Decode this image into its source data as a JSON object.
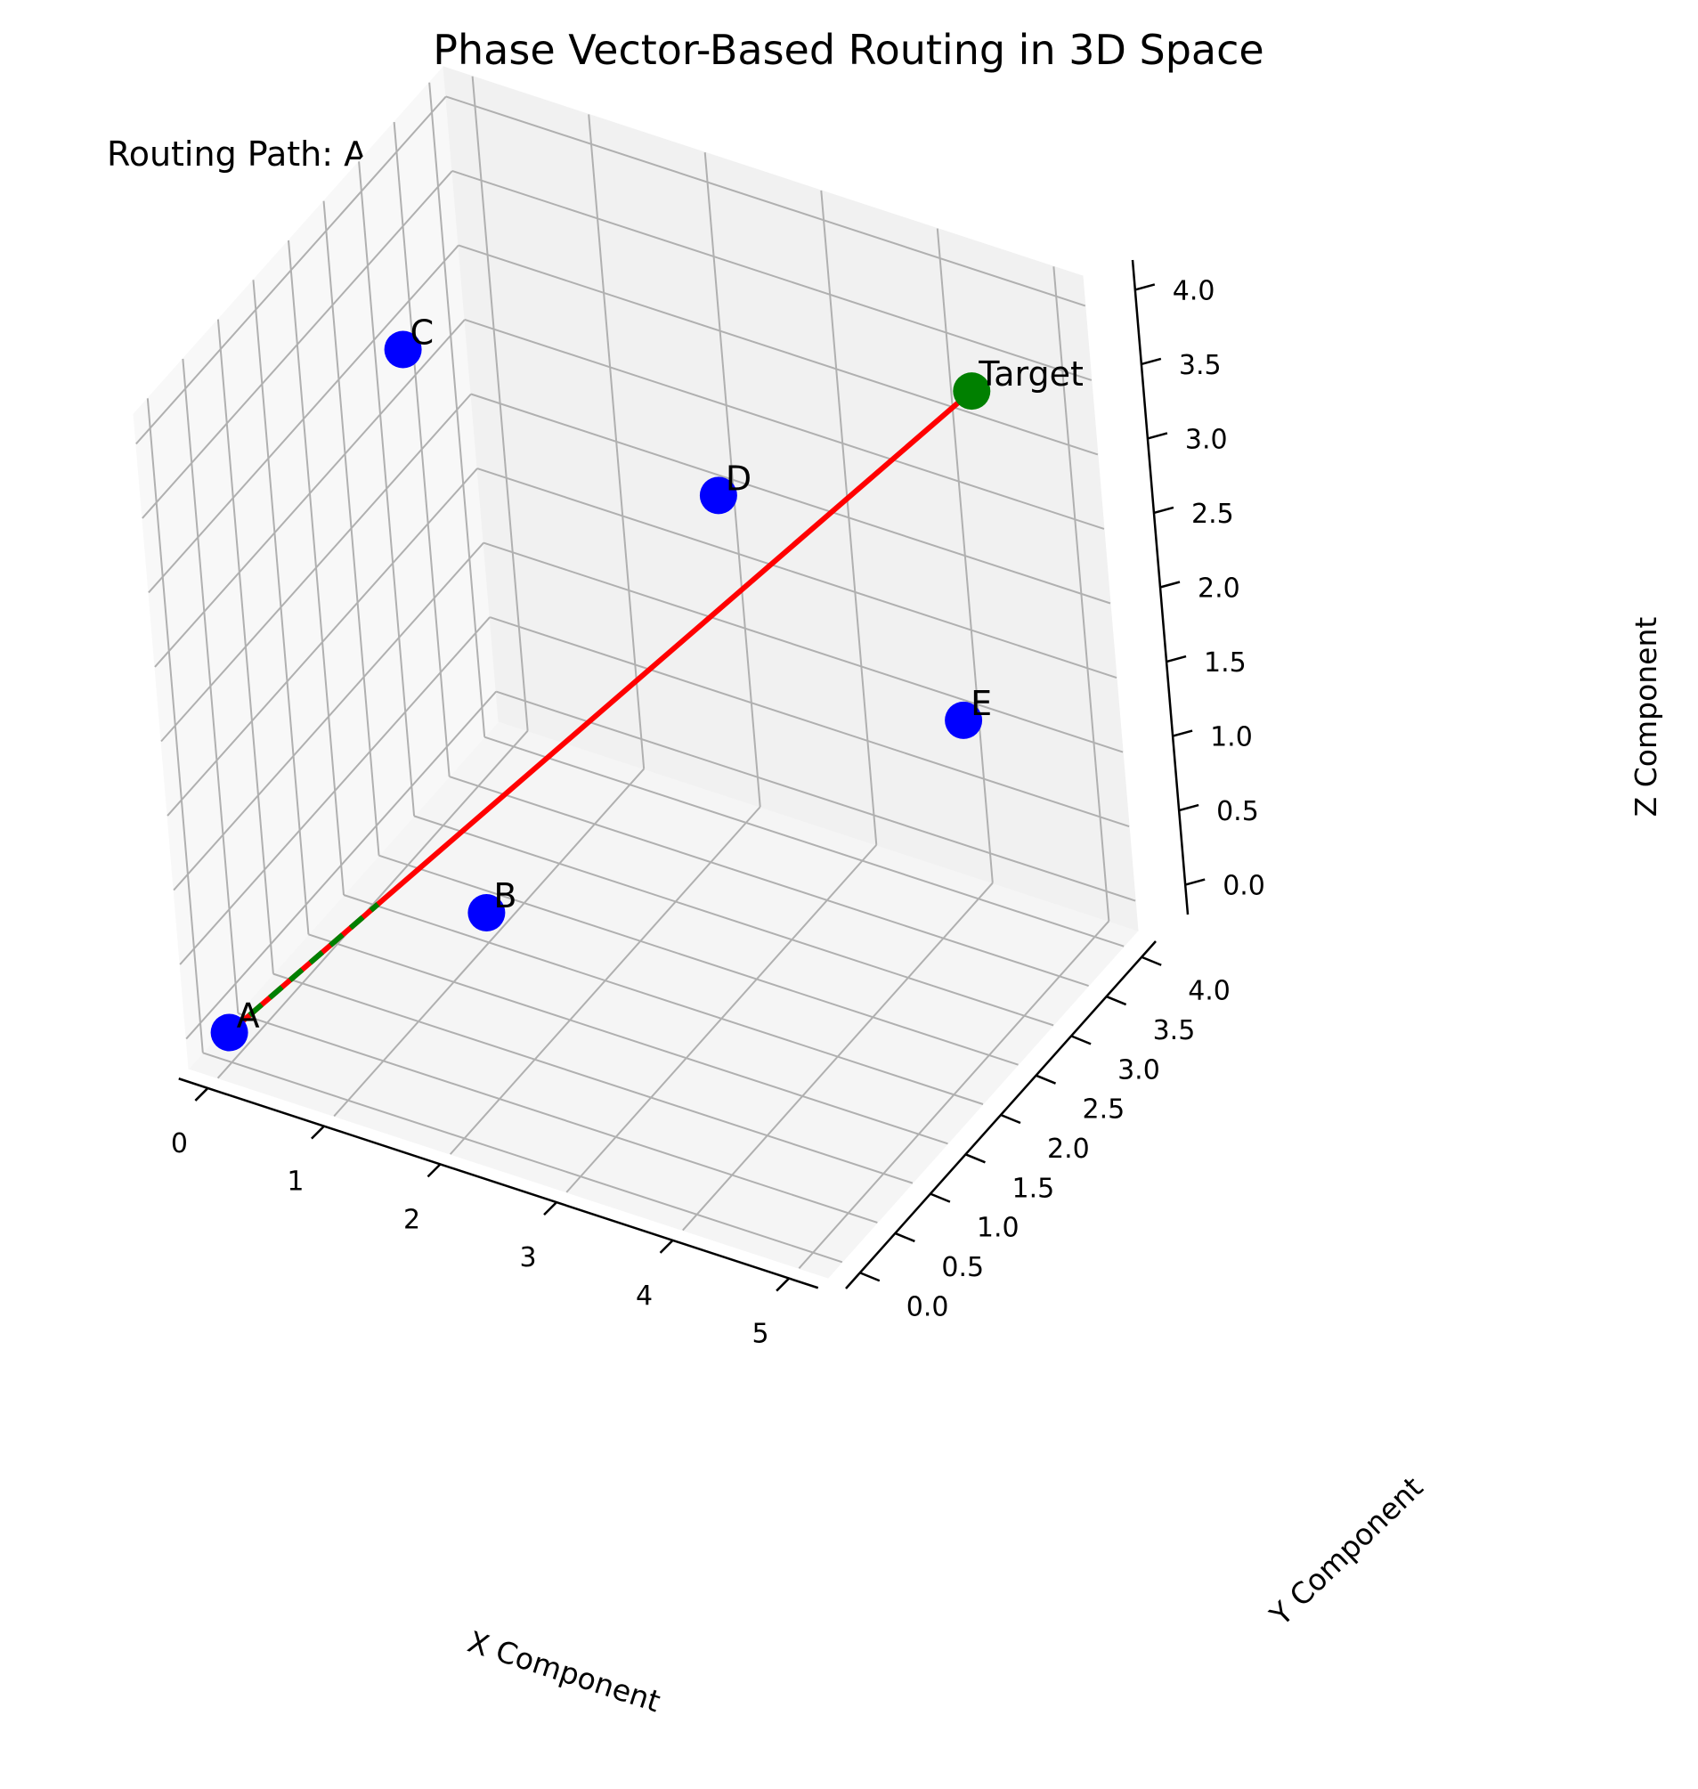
{
  "chart_data": {
    "type": "scatter3d",
    "title": "Phase Vector-Based Routing in 3D Space",
    "annotation": "Routing Path: A → Target",
    "xlabel": "X Component",
    "ylabel": "Y Component",
    "zlabel": "Z Component",
    "xlim": [
      -0.25,
      5.25
    ],
    "ylim": [
      -0.2,
      4.2
    ],
    "zlim": [
      -0.2,
      4.2
    ],
    "x_ticks": [
      "0",
      "1",
      "2",
      "3",
      "4",
      "5"
    ],
    "y_ticks": [
      "0.0",
      "0.5",
      "1.0",
      "1.5",
      "2.0",
      "2.5",
      "3.0",
      "3.5",
      "4.0"
    ],
    "z_ticks": [
      "0.0",
      "0.5",
      "1.0",
      "1.5",
      "2.0",
      "2.5",
      "3.0",
      "3.5",
      "4.0"
    ],
    "grid": true,
    "colors": {
      "node": "#0000ff",
      "target": "#008000",
      "direct_path": "#ff0000",
      "routing_path": "#008000"
    },
    "points": [
      {
        "label": "A",
        "x": 0,
        "y": 0,
        "z": 0,
        "role": "node"
      },
      {
        "label": "B",
        "x": 1,
        "y": 2,
        "z": 0,
        "role": "node"
      },
      {
        "label": "C",
        "x": 0,
        "y": 3,
        "z": 3,
        "role": "node"
      },
      {
        "label": "D",
        "x": 2,
        "y": 4,
        "z": 2,
        "role": "node"
      },
      {
        "label": "E",
        "x": 4,
        "y": 4,
        "z": 1,
        "role": "node"
      },
      {
        "label": "Target",
        "x": 5,
        "y": 3,
        "z": 4,
        "role": "target"
      }
    ],
    "direct_path": {
      "from": "A",
      "to": "Target"
    },
    "routing_path": {
      "from": "A",
      "to_fraction_of_direct": 0.2
    }
  }
}
